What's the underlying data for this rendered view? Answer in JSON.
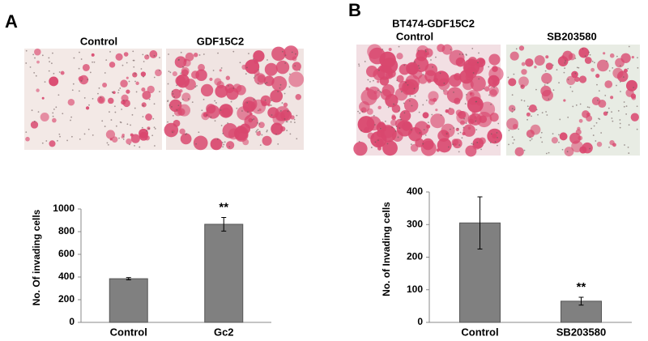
{
  "panels": [
    {
      "label": "A",
      "images": [
        "Control",
        "GDF15C2"
      ]
    },
    {
      "label": "B",
      "title": "BT474-GDF15C2",
      "images": [
        "Control",
        "SB203580"
      ]
    }
  ],
  "chart_data": [
    {
      "type": "bar",
      "ylabel": "No. Of invading cells",
      "categories": [
        "Control",
        "Gc2"
      ],
      "values": [
        385,
        865
      ],
      "errors": [
        10,
        60
      ],
      "significance": [
        null,
        "**"
      ],
      "color": "#808080",
      "ylim": [
        0,
        1000
      ],
      "yticks": [
        0,
        200,
        400,
        600,
        800,
        1000
      ]
    },
    {
      "type": "bar",
      "ylabel": "No. of Invading cells",
      "categories": [
        "Control",
        "SB203580"
      ],
      "values": [
        305,
        65
      ],
      "errors": [
        80,
        12
      ],
      "significance": [
        null,
        "**"
      ],
      "color": "#808080",
      "ylim": [
        0,
        400
      ],
      "yticks": [
        0,
        100,
        200,
        300,
        400
      ]
    }
  ]
}
